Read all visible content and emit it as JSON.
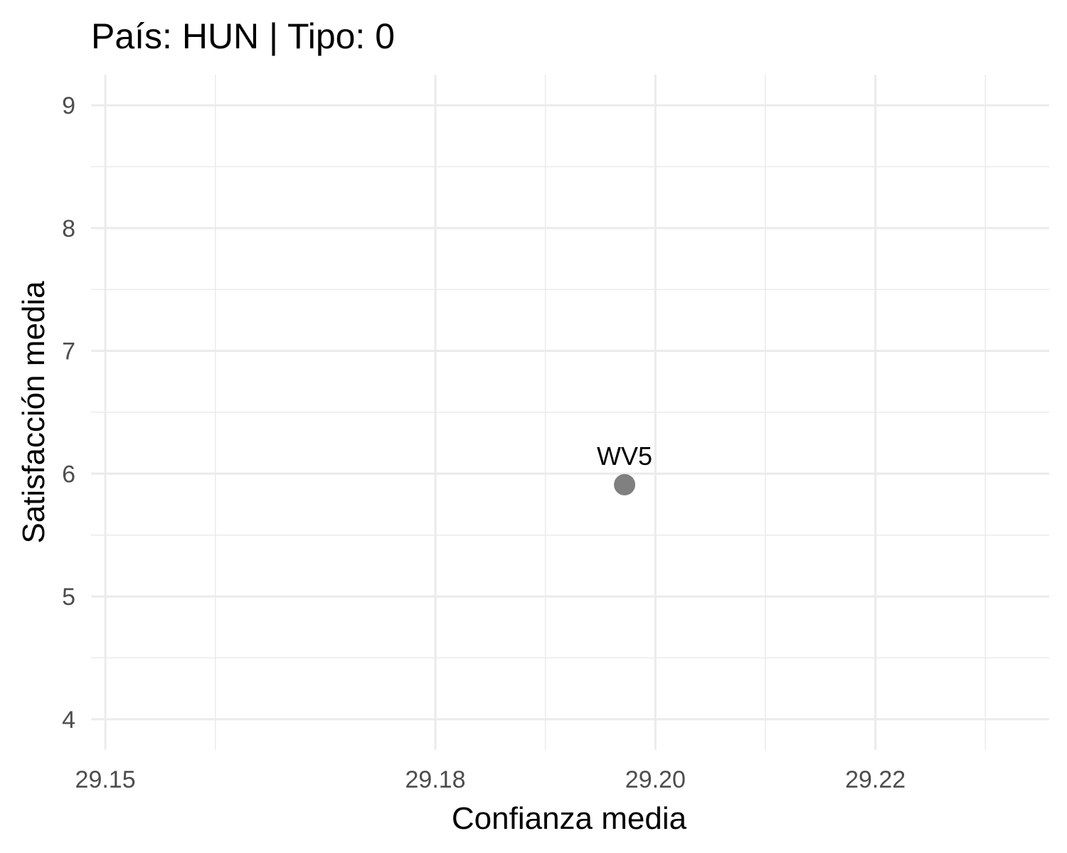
{
  "chart_data": {
    "type": "scatter",
    "title": "País: HUN | Tipo: 0",
    "xlabel": "Confianza media",
    "ylabel": "Satisfacción media",
    "xlim": [
      29.1487,
      29.2358
    ],
    "ylim": [
      3.75,
      9.25
    ],
    "x_ticks": [
      29.15,
      29.18,
      29.2,
      29.22
    ],
    "x_tick_labels": [
      "29.15",
      "29.18",
      "29.20",
      "29.22"
    ],
    "x_minor_ticks": [
      29.16,
      29.19,
      29.21,
      29.23
    ],
    "y_ticks": [
      4,
      5,
      6,
      7,
      8,
      9
    ],
    "y_tick_labels": [
      "4",
      "5",
      "6",
      "7",
      "8",
      "9"
    ],
    "y_minor_ticks": [
      4.5,
      5.5,
      6.5,
      7.5,
      8.5
    ],
    "grid": true,
    "points": [
      {
        "x": 29.1972,
        "y": 5.91,
        "label": "WV5",
        "color": "#808080"
      }
    ]
  }
}
